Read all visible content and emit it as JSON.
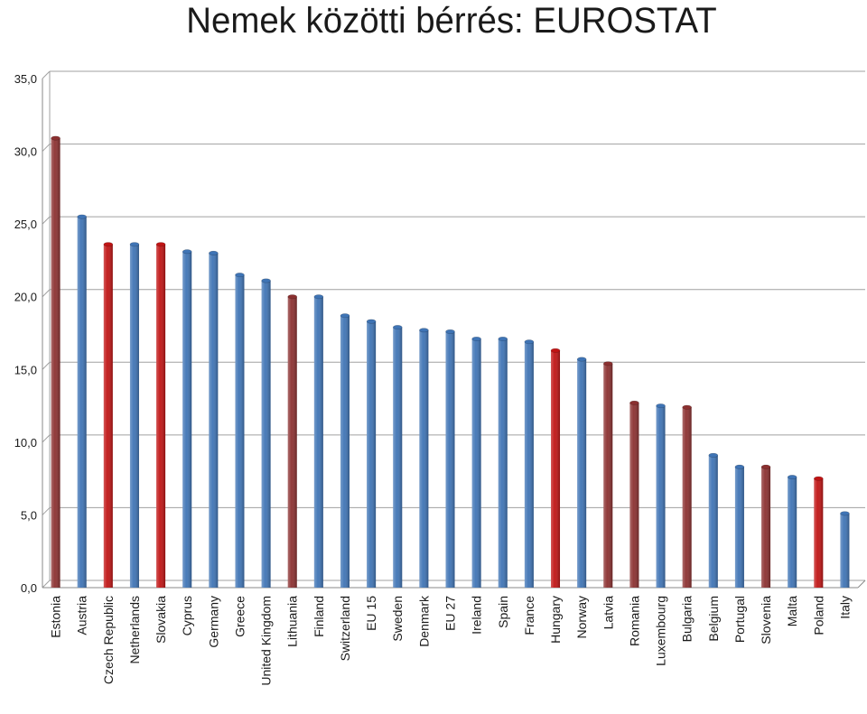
{
  "chart_data": {
    "type": "bar",
    "title": "Nemek közötti bérrés: EUROSTAT",
    "xlabel": "",
    "ylabel": "",
    "ylim": [
      0,
      35
    ],
    "yticks": [
      0,
      5,
      10,
      15,
      20,
      25,
      30,
      35
    ],
    "ytick_labels": [
      "0,0",
      "5,0",
      "10,0",
      "15,0",
      "20,0",
      "25,0",
      "30,0",
      "35,0"
    ],
    "grid": true,
    "categories": [
      "Estonia",
      "Austria",
      "Czech Republic",
      "Netherlands",
      "Slovakia",
      "Cyprus",
      "Germany",
      "Greece",
      "United Kingdom",
      "Lithuania",
      "Finland",
      "Switzerland",
      "EU 15",
      "Sweden",
      "Denmark",
      "EU 27",
      "Ireland",
      "Spain",
      "France",
      "Hungary",
      "Norway",
      "Latvia",
      "Romania",
      "Luxembourg",
      "Bulgaria",
      "Belgium",
      "Portugal",
      "Slovenia",
      "Malta",
      "Poland",
      "Italy"
    ],
    "values": [
      30.9,
      25.5,
      23.6,
      23.6,
      23.6,
      23.1,
      23.0,
      21.5,
      21.1,
      20.0,
      20.0,
      18.7,
      18.3,
      17.9,
      17.7,
      17.6,
      17.1,
      17.1,
      16.9,
      16.3,
      15.7,
      15.4,
      12.7,
      12.5,
      12.4,
      9.1,
      8.3,
      8.3,
      7.6,
      7.5,
      5.1
    ],
    "bar_colors": [
      "#8b3030",
      "#3f74b5",
      "#c01414",
      "#3f74b5",
      "#c01414",
      "#3f74b5",
      "#3f74b5",
      "#3f74b5",
      "#3f74b5",
      "#8b3030",
      "#3f74b5",
      "#3f74b5",
      "#3f74b5",
      "#3f74b5",
      "#3f74b5",
      "#3f74b5",
      "#3f74b5",
      "#3f74b5",
      "#3f74b5",
      "#c01414",
      "#3f74b5",
      "#8b3030",
      "#8b3030",
      "#3f74b5",
      "#8b3030",
      "#3f74b5",
      "#3f74b5",
      "#8b3030",
      "#3f74b5",
      "#c01414",
      "#3f74b5"
    ],
    "colors": {
      "blue": "#3f74b5",
      "red": "#c01414",
      "dark_red": "#8b3030",
      "grid": "#a0a0a0"
    }
  }
}
